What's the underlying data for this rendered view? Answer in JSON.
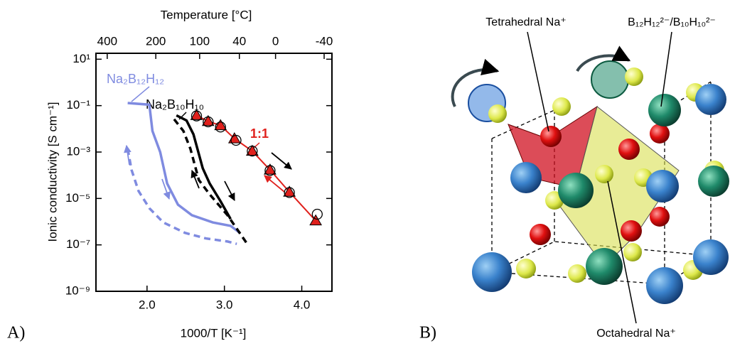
{
  "chart_data": {
    "type": "line",
    "x2label": "Temperature [°C]",
    "ylabel": "Ionic conductivity [S cm⁻¹]",
    "xlabel": "1000/T [K⁻¹]",
    "log_y": true,
    "xlim": [
      1.34,
      4.39
    ],
    "xticks": [
      {
        "value": 2,
        "label": "2.0"
      },
      {
        "value": 3,
        "label": "3.0"
      },
      {
        "value": 4,
        "label": "4.0"
      }
    ],
    "x2ticks": [
      400,
      200,
      100,
      40,
      0,
      -40
    ],
    "ylim": [
      1e-09,
      18
    ],
    "yticks": [
      {
        "value": 1e-09,
        "label": "10⁻⁹"
      },
      {
        "value": 1e-07,
        "label": "10⁻⁷"
      },
      {
        "value": 1e-05,
        "label": "10⁻⁵"
      },
      {
        "value": 0.001,
        "label": "10⁻³"
      },
      {
        "value": 0.1,
        "label": "10⁻¹"
      },
      {
        "value": 10,
        "label": "10¹"
      }
    ],
    "series": [
      {
        "name": "Na₂B₁₂H₁₂",
        "color": "#7f8be0",
        "dash": false,
        "x": [
          1.75,
          2.03,
          2.07,
          2.17,
          2.26,
          2.4,
          2.58,
          2.85,
          3.08,
          3.2
        ],
        "values": [
          0.13,
          0.11,
          0.0081,
          0.001,
          4.4e-05,
          5.4e-06,
          1.9e-06,
          9.3e-07,
          6.6e-07,
          3.3e-07
        ]
      },
      {
        "color": "#7f8be0",
        "dash": true,
        "x": [
          1.75,
          1.8,
          1.89,
          2.03,
          2.21,
          2.49,
          2.76,
          3.04,
          3.16
        ],
        "values": [
          0.0014,
          0.00017,
          2.1e-05,
          3.8e-06,
          9.3e-07,
          3.3e-07,
          1.9e-07,
          1.4e-07,
          1.1e-07
        ]
      },
      {
        "name": "Na₂B₁₀H₁₀",
        "color": "#000000",
        "dash": false,
        "x": [
          2.38,
          2.51,
          2.6,
          2.72,
          2.81,
          2.95,
          3.08
        ],
        "values": [
          0.038,
          0.023,
          0.0058,
          0.0002,
          4.4e-05,
          7.6e-06,
          1.3e-06
        ]
      },
      {
        "color": "#000000",
        "dash": true,
        "x": [
          2.35,
          2.47,
          2.56,
          2.67,
          2.81,
          3.04,
          3.31
        ],
        "values": [
          0.026,
          0.0081,
          0.0014,
          6.2e-05,
          1.5e-05,
          1.9e-06,
          9.3e-08
        ]
      },
      {
        "name": "1:1",
        "color": "#e0201c",
        "dash": false,
        "marker": "triangle",
        "x": [
          2.64,
          2.79,
          2.95,
          3.13,
          3.36,
          3.59,
          3.84,
          4.18
        ],
        "values": [
          0.038,
          0.021,
          0.014,
          0.0038,
          0.0011,
          0.00017,
          1.9e-05,
          1.1e-06
        ]
      },
      {
        "color": "#000000",
        "marker": "circle",
        "x": [
          2.64,
          2.79,
          2.95,
          3.15,
          3.36,
          3.59,
          3.84,
          4.2
        ],
        "values": [
          0.036,
          0.02,
          0.012,
          0.0032,
          0.0011,
          0.00016,
          1.8e-05,
          2.1e-06
        ]
      }
    ]
  },
  "panel_labels": [
    "A)",
    "B)"
  ],
  "structure": {
    "labels": [
      "Tetrahedral Na⁺",
      "B₁₂H₁₂²⁻/B₁₀H₁₀²⁻",
      "Octahedral Na⁺"
    ]
  }
}
